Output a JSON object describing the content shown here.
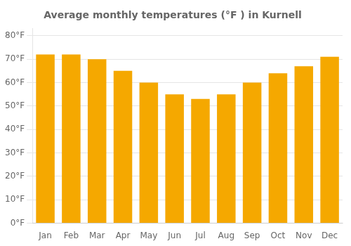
{
  "chart_data": {
    "type": "bar",
    "title": "Average monthly temperatures (°F ) in Kurnell",
    "categories": [
      "Jan",
      "Feb",
      "Mar",
      "Apr",
      "May",
      "Jun",
      "Jul",
      "Aug",
      "Sep",
      "Oct",
      "Nov",
      "Dec"
    ],
    "values": [
      72,
      72,
      70,
      65,
      60,
      55,
      53,
      55,
      60,
      64,
      67,
      71
    ],
    "color": "#F5A800",
    "ylim": [
      0,
      83
    ],
    "yticks": [
      {
        "value": 0,
        "label": "0°F"
      },
      {
        "value": 10,
        "label": "10°F"
      },
      {
        "value": 20,
        "label": "20°F"
      },
      {
        "value": 30,
        "label": "30°F"
      },
      {
        "value": 40,
        "label": "40°F"
      },
      {
        "value": 50,
        "label": "50°F"
      },
      {
        "value": 60,
        "label": "60°F"
      },
      {
        "value": 70,
        "label": "70°F"
      },
      {
        "value": 80,
        "label": "80°F"
      }
    ],
    "grid": true
  }
}
